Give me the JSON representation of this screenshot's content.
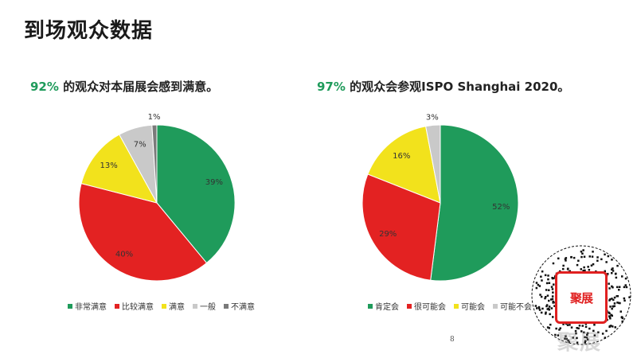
{
  "title": "到场观众数据",
  "page_number": "8",
  "qr_logo_text": "聚展",
  "watermark_text": "聚展",
  "colors": {
    "green": "#1f9b5b",
    "red": "#e32222",
    "yellow": "#f2e21c",
    "lightgray": "#c9c9c9",
    "darkgray": "#7a7a7a"
  },
  "chart_data": [
    {
      "type": "pie",
      "title_highlight": "92%",
      "title_rest": " 的观众对本届展会感到满意。",
      "categories": [
        "非常满意",
        "比较满意",
        "满意",
        "一般",
        "不满意"
      ],
      "values": [
        39,
        40,
        13,
        7,
        1
      ],
      "labels": [
        "39%",
        "40%",
        "13%",
        "7%",
        "1%"
      ],
      "colors": [
        "#1f9b5b",
        "#e32222",
        "#f2e21c",
        "#c9c9c9",
        "#7a7a7a"
      ],
      "legend_position": "bottom"
    },
    {
      "type": "pie",
      "title_highlight": "97%",
      "title_rest": " 的观众会参观ISPO Shanghai 2020。",
      "categories": [
        "肯定会",
        "很可能会",
        "可能会",
        "可能不会"
      ],
      "values": [
        52,
        29,
        16,
        3
      ],
      "labels": [
        "52%",
        "29%",
        "16%",
        "3%"
      ],
      "colors": [
        "#1f9b5b",
        "#e32222",
        "#f2e21c",
        "#c9c9c9"
      ],
      "legend_position": "bottom"
    }
  ]
}
